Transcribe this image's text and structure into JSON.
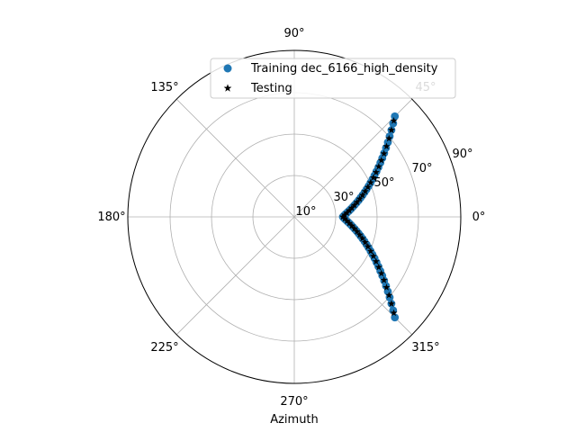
{
  "chart_data": {
    "type": "scatter",
    "projection": "polar",
    "title": "",
    "xlabel": "Azimuth",
    "ylabel": "",
    "grid": true,
    "legend_placement": "top-right",
    "angular_tick_labels": [
      "0°",
      "45°",
      "90°",
      "135°",
      "180°",
      "225°",
      "270°",
      "315°"
    ],
    "radial_tick_labels": [
      "10°",
      "30°",
      "50°",
      "70°",
      "90°"
    ],
    "radial_axis": {
      "note": "altitude; 90° at center is outer edge",
      "range": [
        10,
        90
      ]
    },
    "series": [
      {
        "name": "Training dec_6166_high_density",
        "marker": "circle",
        "color": "#1f77b4",
        "azimuth_range_deg": [
          -45,
          45
        ],
        "arc_extremes": [
          {
            "azimuth": 45,
            "radial": 73.5
          },
          {
            "azimuth": 30,
            "radial": 62
          },
          {
            "azimuth": 15,
            "radial": 48
          },
          {
            "azimuth": 0,
            "radial": 31
          },
          {
            "azimuth": -15,
            "radial": 48
          },
          {
            "azimuth": -30,
            "radial": 62
          },
          {
            "azimuth": -45,
            "radial": 73.5
          }
        ]
      },
      {
        "name": "Testing",
        "marker": "star",
        "color": "#000000",
        "azimuth_range_deg": [
          -45,
          45
        ]
      }
    ]
  }
}
